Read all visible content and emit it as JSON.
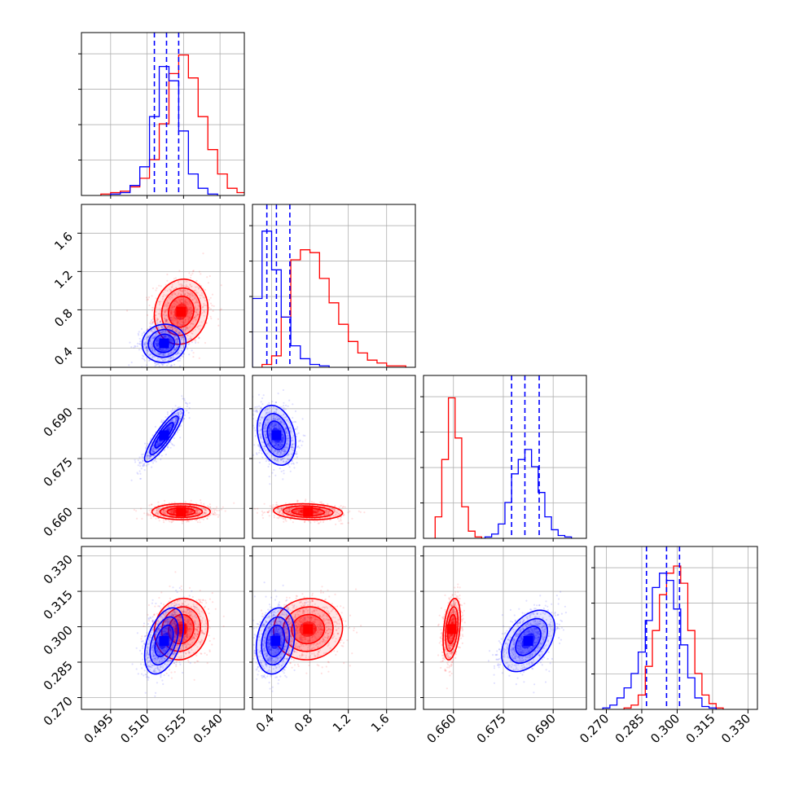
{
  "chart_data": {
    "type": "corner",
    "grid": true,
    "series": [
      {
        "name": "",
        "color": "#ff0000"
      },
      {
        "name": "",
        "color": "#0000ff"
      }
    ],
    "parameters": [
      {
        "range": [
          0.483,
          0.55
        ],
        "ticks": [
          "0.495",
          "0.510",
          "0.525",
          "0.540"
        ],
        "tick_values": [
          0.495,
          0.51,
          0.525,
          0.54
        ]
      },
      {
        "range": [
          0.2,
          1.9
        ],
        "ticks": [
          "0.4",
          "0.8",
          "1.2",
          "1.6"
        ],
        "tick_values": [
          0.4,
          0.8,
          1.2,
          1.6
        ]
      },
      {
        "range": [
          0.651,
          0.7
        ],
        "ticks": [
          "0.660",
          "0.675",
          "0.690"
        ],
        "tick_values": [
          0.66,
          0.675,
          0.69
        ]
      },
      {
        "range": [
          0.265,
          0.334
        ],
        "ticks": [
          "0.270",
          "0.285",
          "0.300",
          "0.315",
          "0.330"
        ],
        "tick_values": [
          0.27,
          0.285,
          0.3,
          0.315,
          0.33
        ]
      }
    ],
    "marginals": [
      {
        "param": 0,
        "hist": [
          {
            "color": "#ff0000",
            "values": [
              [
                0.493,
                0.01
              ],
              [
                0.497,
                0.02
              ],
              [
                0.501,
                0.03
              ],
              [
                0.505,
                0.06
              ],
              [
                0.509,
                0.12
              ],
              [
                0.513,
                0.25
              ],
              [
                0.517,
                0.5
              ],
              [
                0.521,
                0.85
              ],
              [
                0.525,
                0.98
              ],
              [
                0.529,
                0.82
              ],
              [
                0.533,
                0.55
              ],
              [
                0.537,
                0.32
              ],
              [
                0.541,
                0.15
              ],
              [
                0.545,
                0.05
              ],
              [
                0.549,
                0.02
              ]
            ]
          },
          {
            "color": "#0000ff",
            "values": [
              [
                0.497,
                0.01
              ],
              [
                0.501,
                0.02
              ],
              [
                0.505,
                0.07
              ],
              [
                0.509,
                0.2
              ],
              [
                0.513,
                0.55
              ],
              [
                0.517,
                0.9
              ],
              [
                0.521,
                0.8
              ],
              [
                0.525,
                0.45
              ],
              [
                0.529,
                0.15
              ],
              [
                0.533,
                0.05
              ],
              [
                0.537,
                0.01
              ]
            ]
          }
        ],
        "quantiles": [
          0.513,
          0.518,
          0.523
        ]
      },
      {
        "param": 1,
        "hist": [
          {
            "color": "#ff0000",
            "values": [
              [
                0.35,
                0.02
              ],
              [
                0.45,
                0.08
              ],
              [
                0.55,
                0.35
              ],
              [
                0.65,
                0.75
              ],
              [
                0.75,
                0.82
              ],
              [
                0.85,
                0.8
              ],
              [
                0.95,
                0.62
              ],
              [
                1.05,
                0.45
              ],
              [
                1.15,
                0.3
              ],
              [
                1.25,
                0.18
              ],
              [
                1.35,
                0.1
              ],
              [
                1.45,
                0.05
              ],
              [
                1.55,
                0.03
              ],
              [
                1.65,
                0.01
              ],
              [
                1.75,
                0.01
              ]
            ]
          },
          {
            "color": "#0000ff",
            "values": [
              [
                0.25,
                0.48
              ],
              [
                0.35,
                0.95
              ],
              [
                0.45,
                0.68
              ],
              [
                0.55,
                0.35
              ],
              [
                0.65,
                0.15
              ],
              [
                0.75,
                0.06
              ],
              [
                0.85,
                0.02
              ],
              [
                0.95,
                0.01
              ]
            ]
          }
        ],
        "quantiles": [
          0.35,
          0.45,
          0.59
        ]
      },
      {
        "param": 2,
        "hist": [
          {
            "color": "#ff0000",
            "values": [
              [
                0.6555,
                0.15
              ],
              [
                0.6575,
                0.55
              ],
              [
                0.6595,
                0.98
              ],
              [
                0.6615,
                0.7
              ],
              [
                0.6635,
                0.22
              ],
              [
                0.6655,
                0.05
              ],
              [
                0.6675,
                0.01
              ]
            ]
          },
          {
            "color": "#0000ff",
            "values": [
              [
                0.6705,
                0.01
              ],
              [
                0.6725,
                0.03
              ],
              [
                0.6745,
                0.1
              ],
              [
                0.6765,
                0.25
              ],
              [
                0.6785,
                0.45
              ],
              [
                0.6805,
                0.55
              ],
              [
                0.6825,
                0.62
              ],
              [
                0.6845,
                0.5
              ],
              [
                0.6865,
                0.32
              ],
              [
                0.6885,
                0.15
              ],
              [
                0.6905,
                0.06
              ],
              [
                0.6925,
                0.02
              ],
              [
                0.6945,
                0.01
              ]
            ]
          }
        ],
        "quantiles": [
          0.6775,
          0.6815,
          0.6858
        ]
      },
      {
        "param": 3,
        "hist": [
          {
            "color": "#ff0000",
            "values": [
              [
                0.279,
                0.01
              ],
              [
                0.282,
                0.03
              ],
              [
                0.285,
                0.1
              ],
              [
                0.288,
                0.3
              ],
              [
                0.291,
                0.55
              ],
              [
                0.294,
                0.8
              ],
              [
                0.297,
                0.95
              ],
              [
                0.3,
                1.0
              ],
              [
                0.303,
                0.88
              ],
              [
                0.306,
                0.55
              ],
              [
                0.309,
                0.25
              ],
              [
                0.312,
                0.1
              ],
              [
                0.315,
                0.04
              ],
              [
                0.318,
                0.01
              ]
            ]
          },
          {
            "color": "#0000ff",
            "values": [
              [
                0.27,
                0.01
              ],
              [
                0.273,
                0.03
              ],
              [
                0.276,
                0.08
              ],
              [
                0.279,
                0.15
              ],
              [
                0.282,
                0.25
              ],
              [
                0.285,
                0.4
              ],
              [
                0.288,
                0.62
              ],
              [
                0.291,
                0.85
              ],
              [
                0.294,
                0.95
              ],
              [
                0.297,
                0.9
              ],
              [
                0.3,
                0.7
              ],
              [
                0.303,
                0.45
              ],
              [
                0.306,
                0.22
              ],
              [
                0.309,
                0.08
              ],
              [
                0.312,
                0.02
              ],
              [
                0.315,
                0.01
              ]
            ]
          }
        ],
        "quantiles": [
          0.287,
          0.2955,
          0.301
        ]
      }
    ],
    "joints": [
      {
        "x_param": 0,
        "y_param": 1,
        "blobs": [
          {
            "color": "#ff0000",
            "mean": [
              0.524,
              0.78
            ],
            "sd": [
              0.0055,
              0.17
            ],
            "rho": 0.1
          },
          {
            "color": "#0000ff",
            "mean": [
              0.517,
              0.45
            ],
            "sd": [
              0.0045,
              0.1
            ],
            "rho": 0.05
          }
        ]
      },
      {
        "x_param": 0,
        "y_param": 2,
        "blobs": [
          {
            "color": "#ff0000",
            "mean": [
              0.524,
              0.659
            ],
            "sd": [
              0.006,
              0.0012
            ],
            "rho": 0.0
          },
          {
            "color": "#0000ff",
            "mean": [
              0.517,
              0.682
            ],
            "sd": [
              0.004,
              0.004
            ],
            "rho": 0.88
          }
        ]
      },
      {
        "x_param": 1,
        "y_param": 2,
        "blobs": [
          {
            "color": "#ff0000",
            "mean": [
              0.78,
              0.659
            ],
            "sd": [
              0.18,
              0.0012
            ],
            "rho": -0.15
          },
          {
            "color": "#0000ff",
            "mean": [
              0.45,
              0.682
            ],
            "sd": [
              0.1,
              0.0045
            ],
            "rho": -0.25
          }
        ]
      },
      {
        "x_param": 0,
        "y_param": 3,
        "blobs": [
          {
            "color": "#ff0000",
            "mean": [
              0.524,
              0.299
            ],
            "sd": [
              0.0055,
              0.0065
            ],
            "rho": 0.1
          },
          {
            "color": "#0000ff",
            "mean": [
              0.517,
              0.294
            ],
            "sd": [
              0.004,
              0.007
            ],
            "rho": 0.45
          }
        ]
      },
      {
        "x_param": 1,
        "y_param": 3,
        "blobs": [
          {
            "color": "#ff0000",
            "mean": [
              0.78,
              0.299
            ],
            "sd": [
              0.18,
              0.0065
            ],
            "rho": 0.05
          },
          {
            "color": "#0000ff",
            "mean": [
              0.44,
              0.294
            ],
            "sd": [
              0.1,
              0.007
            ],
            "rho": 0.2
          }
        ]
      },
      {
        "x_param": 2,
        "y_param": 3,
        "blobs": [
          {
            "color": "#ff0000",
            "mean": [
              0.6595,
              0.299
            ],
            "sd": [
              0.0013,
              0.0065
            ],
            "rho": 0.35
          },
          {
            "color": "#0000ff",
            "mean": [
              0.6825,
              0.294
            ],
            "sd": [
              0.004,
              0.0065
            ],
            "rho": 0.45
          }
        ]
      }
    ]
  }
}
